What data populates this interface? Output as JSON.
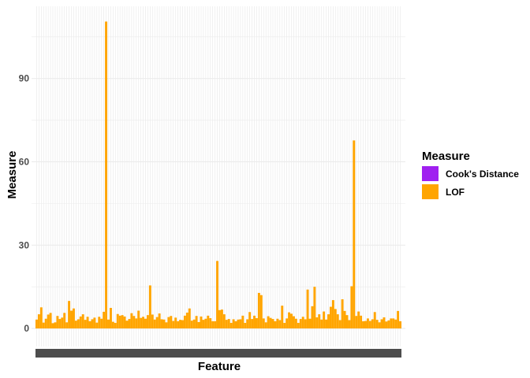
{
  "chart_data": {
    "type": "bar",
    "title": "",
    "xlabel": "Feature",
    "ylabel": "Measure",
    "ylim": [
      -6.5,
      116
    ],
    "yticks": [
      0,
      30,
      60,
      90
    ],
    "grid": true,
    "legend": {
      "title": "Measure",
      "position": "right",
      "entries": [
        {
          "name": "Cook's Distance",
          "color": "#A020F0"
        },
        {
          "name": "LOF",
          "color": "#FFA500"
        }
      ]
    },
    "series": [
      {
        "name": "Cook's Distance",
        "color": "#A020F0",
        "values": []
      },
      {
        "name": "LOF",
        "color": "#FFA500",
        "values": [
          3.2,
          5.1,
          7.6,
          2.1,
          3.5,
          5.0,
          5.6,
          1.9,
          2.2,
          4.5,
          3.4,
          3.9,
          5.6,
          2.2,
          9.9,
          6.4,
          7.2,
          2.8,
          3.3,
          4.3,
          5.1,
          3.1,
          4.2,
          2.6,
          3.3,
          3.9,
          2.1,
          4.2,
          3.5,
          6.0,
          110.5,
          3.2,
          7.4,
          2.4,
          2.0,
          5.2,
          4.6,
          4.8,
          4.3,
          2.8,
          3.4,
          5.5,
          4.5,
          3.6,
          6.4,
          3.8,
          4.2,
          3.5,
          4.8,
          15.5,
          5.0,
          3.2,
          4.1,
          5.4,
          3.3,
          3.2,
          2.2,
          4.1,
          4.5,
          2.7,
          3.9,
          2.6,
          3.1,
          3.0,
          4.6,
          5.7,
          7.2,
          2.8,
          3.2,
          4.5,
          2.3,
          4.3,
          3.1,
          3.5,
          4.6,
          3.7,
          2.6,
          2.6,
          24.3,
          6.6,
          6.8,
          5.1,
          3.1,
          3.4,
          2.0,
          3.3,
          2.6,
          3.2,
          3.3,
          4.6,
          2.0,
          3.3,
          5.9,
          3.4,
          4.6,
          3.7,
          12.8,
          12.0,
          3.6,
          2.2,
          4.4,
          3.8,
          3.4,
          2.6,
          3.5,
          3.0,
          8.2,
          2.0,
          3.6,
          5.8,
          5.3,
          4.4,
          3.5,
          2.0,
          3.4,
          4.2,
          3.3,
          14.0,
          3.5,
          8.0,
          15.0,
          4.0,
          5.1,
          3.2,
          6.1,
          3.2,
          5.1,
          7.8,
          10.2,
          7.0,
          5.1,
          3.0,
          10.5,
          6.3,
          4.8,
          3.0,
          15.2,
          67.7,
          4.5,
          6.1,
          4.6,
          2.6,
          2.7,
          3.6,
          2.7,
          3.3,
          5.9,
          3.1,
          2.2,
          3.3,
          4.0,
          2.5,
          2.9,
          3.6,
          3.6,
          3.2,
          6.3,
          2.6
        ]
      }
    ]
  }
}
